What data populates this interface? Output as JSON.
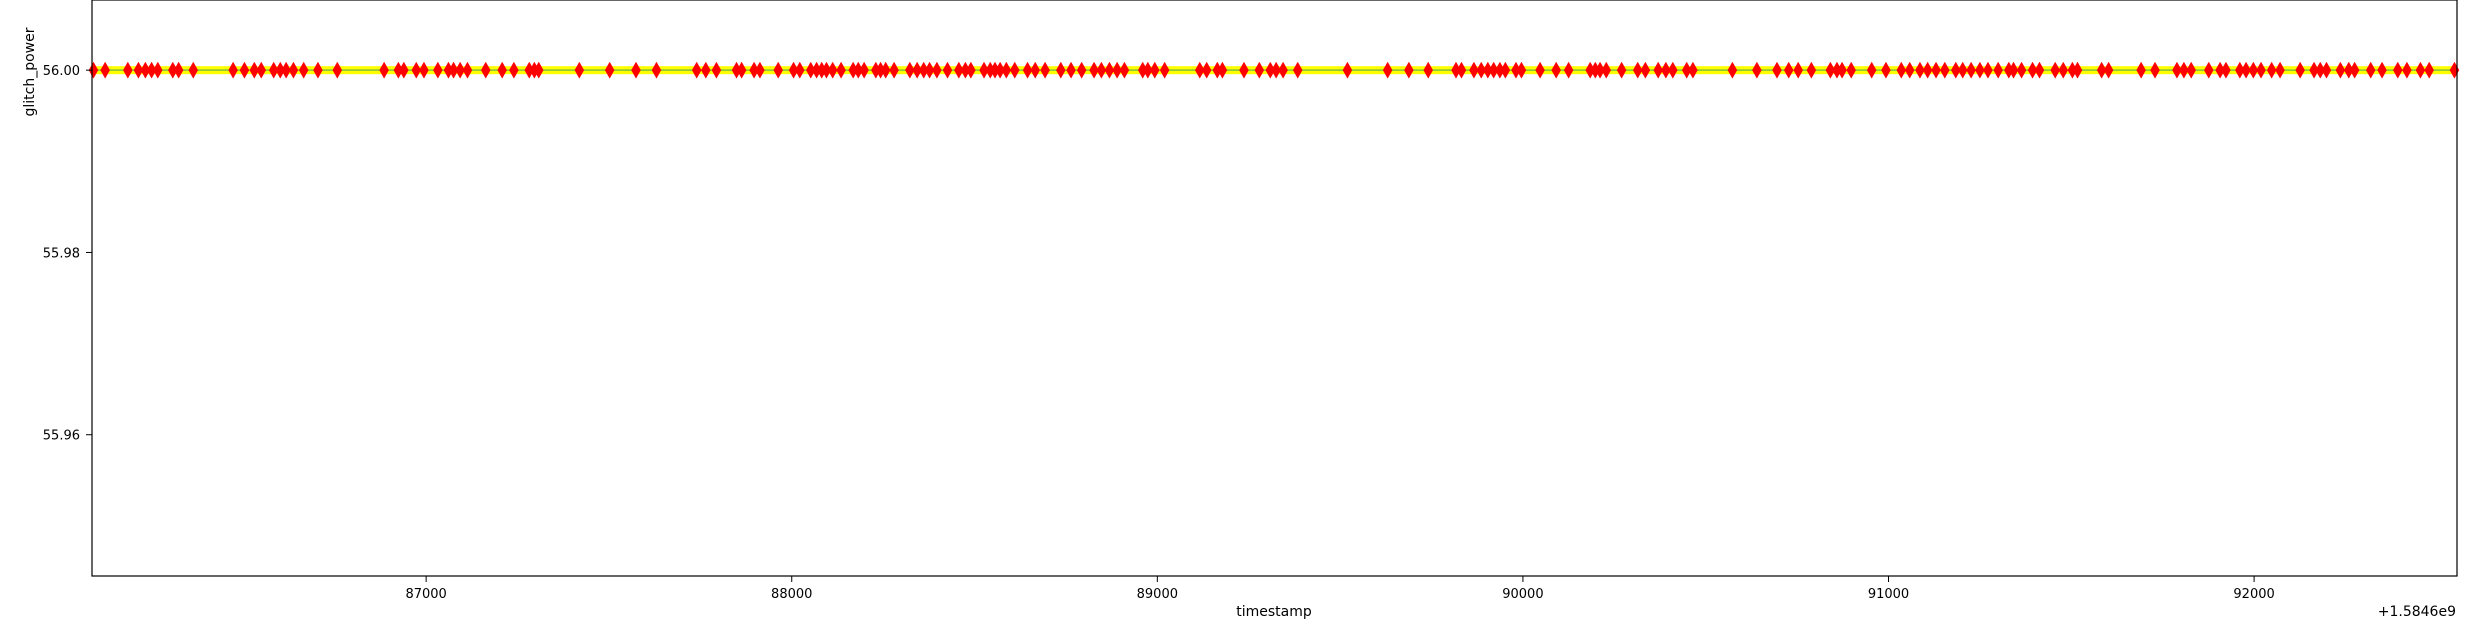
{
  "chart_data": {
    "type": "line",
    "title": "",
    "xlabel": "timestamp",
    "ylabel": "glitch_power",
    "x_offset_label": "+1.5846e9",
    "xlim": [
      1584686086,
      1584692555
    ],
    "ylim": [
      55.9445,
      56.0077
    ],
    "x_ticks": [
      {
        "value": 1584687000,
        "label": "87000"
      },
      {
        "value": 1584688000,
        "label": "88000"
      },
      {
        "value": 1584689000,
        "label": "89000"
      },
      {
        "value": 1584690000,
        "label": "90000"
      },
      {
        "value": 1584691000,
        "label": "91000"
      },
      {
        "value": 1584692000,
        "label": "92000"
      }
    ],
    "y_ticks": [
      {
        "value": 56.0,
        "label": "56.00"
      },
      {
        "value": 55.98,
        "label": "55.98"
      },
      {
        "value": 55.96,
        "label": "55.96"
      }
    ],
    "grid": false,
    "colors": {
      "line": "#7fbf3f",
      "band": "#ffff00",
      "marker": "#ff0000"
    },
    "series": [
      {
        "type": "line",
        "constant_y": 56.0,
        "x_range": [
          1584686086,
          1584692555
        ]
      },
      {
        "type": "scatter",
        "marker": "thin_diamond",
        "y": 56.0,
        "x": [
          1584686090,
          1584686122,
          1584686184,
          1584686213,
          1584686232,
          1584686249,
          1584686266,
          1584686307,
          1584686323,
          1584686363,
          1584686472,
          1584686503,
          1584686530,
          1584686549,
          1584686583,
          1584686601,
          1584686617,
          1584686637,
          1584686665,
          1584686704,
          1584686757,
          1584686885,
          1584686924,
          1584686939,
          1584686973,
          1584686994,
          1584687032,
          1584687061,
          1584687075,
          1584687093,
          1584687113,
          1584687163,
          1584687208,
          1584687240,
          1584687282,
          1584687296,
          1584687308,
          1584687419,
          1584687502,
          1584687574,
          1584687630,
          1584687740,
          1584687765,
          1584687794,
          1584687849,
          1584687863,
          1584687897,
          1584687913,
          1584687963,
          1584688005,
          1584688022,
          1584688052,
          1584688068,
          1584688082,
          1584688095,
          1584688112,
          1584688135,
          1584688168,
          1584688182,
          1584688198,
          1584688230,
          1584688243,
          1584688257,
          1584688280,
          1584688323,
          1584688343,
          1584688361,
          1584688377,
          1584688397,
          1584688426,
          1584688457,
          1584688475,
          1584688490,
          1584688526,
          1584688543,
          1584688556,
          1584688570,
          1584688587,
          1584688610,
          1584688645,
          1584688666,
          1584688693,
          1584688736,
          1584688764,
          1584688793,
          1584688827,
          1584688847,
          1584688869,
          1584688890,
          1584688910,
          1584688960,
          1584688974,
          1584688993,
          1584689020,
          1584689116,
          1584689135,
          1584689164,
          1584689178,
          1584689237,
          1584689279,
          1584689309,
          1584689325,
          1584689344,
          1584689384,
          1584689520,
          1584689630,
          1584689688,
          1584689741,
          1584689817,
          1584689832,
          1584689866,
          1584689886,
          1584689904,
          1584689920,
          1584689937,
          1584689952,
          1584689981,
          1584689996,
          1584690047,
          1584690091,
          1584690125,
          1584690184,
          1584690198,
          1584690211,
          1584690228,
          1584690270,
          1584690314,
          1584690335,
          1584690370,
          1584690391,
          1584690410,
          1584690448,
          1584690465,
          1584690573,
          1584690640,
          1584690695,
          1584690727,
          1584690753,
          1584690789,
          1584690841,
          1584690859,
          1584690873,
          1584690898,
          1584690954,
          1584690993,
          1584691035,
          1584691058,
          1584691086,
          1584691107,
          1584691130,
          1584691154,
          1584691184,
          1584691203,
          1584691226,
          1584691250,
          1584691272,
          1584691300,
          1584691329,
          1584691342,
          1584691364,
          1584691394,
          1584691413,
          1584691456,
          1584691478,
          1584691503,
          1584691517,
          1584691583,
          1584691602,
          1584691691,
          1584691729,
          1584691789,
          1584691808,
          1584691828,
          1584691876,
          1584691907,
          1584691923,
          1584691961,
          1584691978,
          1584691998,
          1584692019,
          1584692048,
          1584692071,
          1584692126,
          1584692164,
          1584692181,
          1584692198,
          1584692236,
          1584692259,
          1584692275,
          1584692319,
          1584692350,
          1584692393,
          1584692418,
          1584692455,
          1584692479,
          1584692548
        ]
      }
    ]
  }
}
